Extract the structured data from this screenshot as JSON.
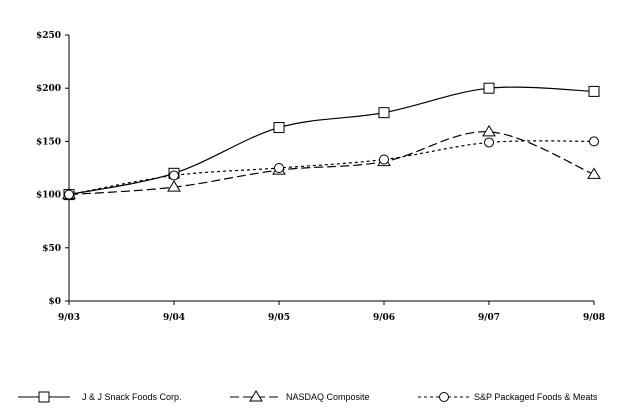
{
  "chart_data": {
    "type": "line",
    "categories": [
      "9/03",
      "9/04",
      "9/05",
      "9/06",
      "9/07",
      "9/08"
    ],
    "ylim": [
      0,
      250
    ],
    "yticks": [
      0,
      50,
      100,
      150,
      200,
      250
    ],
    "ytick_labels": [
      "$0",
      "$50",
      "$100",
      "$150",
      "$200",
      "$250"
    ],
    "grid": false,
    "legend_position": "bottom",
    "series": [
      {
        "name": "J & J Snack Foods Corp.",
        "values": [
          100,
          120,
          163,
          177,
          200,
          197
        ],
        "line_style": "solid",
        "marker": "square",
        "smooth": true,
        "color": "#000000"
      },
      {
        "name": "NASDAQ Composite",
        "values": [
          100,
          107,
          123,
          131,
          159,
          119
        ],
        "line_style": "long-dash",
        "marker": "triangle",
        "smooth": true,
        "color": "#000000"
      },
      {
        "name": "S&P Packaged Foods & Meats",
        "values": [
          100,
          118,
          125,
          133,
          149,
          150
        ],
        "line_style": "short-dash",
        "marker": "circle",
        "smooth": true,
        "color": "#000000"
      }
    ]
  }
}
